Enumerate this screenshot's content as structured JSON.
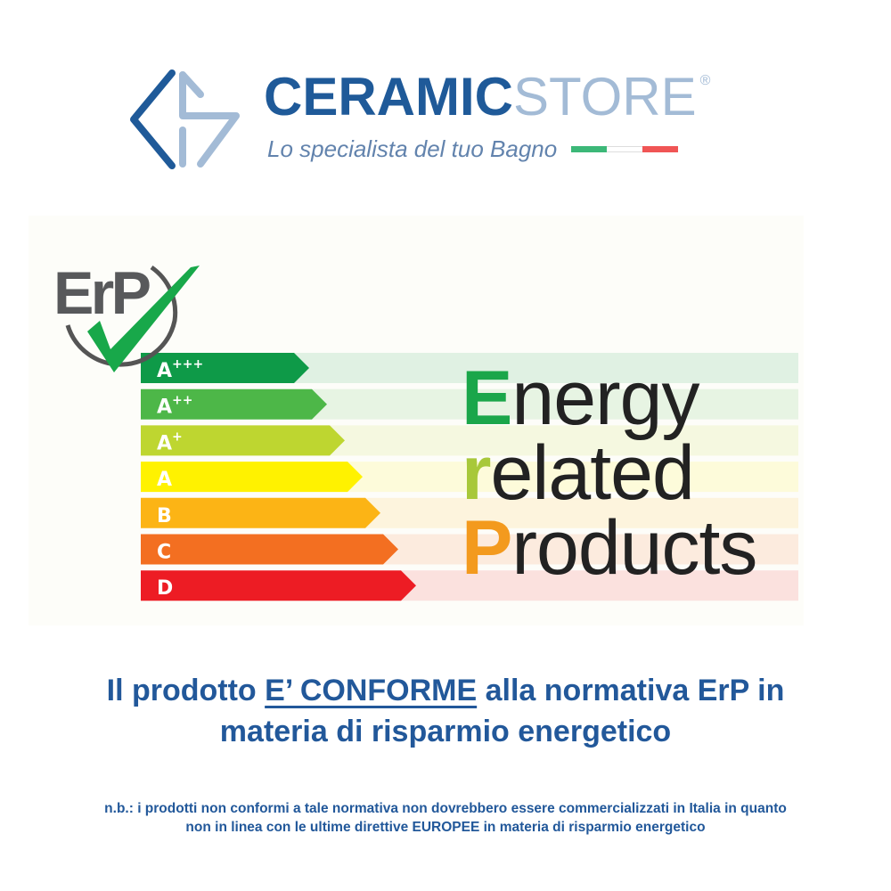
{
  "logo": {
    "brand_part1": "CERAMIC",
    "brand_part2": "STORE",
    "registered": "®",
    "tagline": "Lo specialista del tuo Bagno",
    "flag_colors": [
      "#3cb878",
      "#ffffff",
      "#f05555"
    ],
    "primary_color": "#1f5a99",
    "secondary_color": "#a3bbd6"
  },
  "erp_badge": {
    "text": "ErP",
    "icon": "checkmark-icon"
  },
  "energy_scale": [
    {
      "grade": "A",
      "sup": "+++",
      "color": "#0e9a48"
    },
    {
      "grade": "A",
      "sup": "++",
      "color": "#4db748"
    },
    {
      "grade": "A",
      "sup": "+",
      "color": "#bed630"
    },
    {
      "grade": "A",
      "sup": "",
      "color": "#fff200"
    },
    {
      "grade": "B",
      "sup": "",
      "color": "#fcb415"
    },
    {
      "grade": "C",
      "sup": "",
      "color": "#f36f21"
    },
    {
      "grade": "D",
      "sup": "",
      "color": "#ed1c24"
    }
  ],
  "erp_title": {
    "line1_initial": "E",
    "line1_rest": "nergy",
    "line2_initial": "r",
    "line2_rest": "elated",
    "line3_initial": "P",
    "line3_rest": "roducts",
    "colors": [
      "#1aa64a",
      "#a8c83a",
      "#f39a1e"
    ]
  },
  "headline": {
    "before": "Il prodotto ",
    "emphasis": "E’ CONFORME",
    "after": " alla normativa ErP in",
    "line2": "materia di risparmio energetico"
  },
  "note": {
    "line1": "n.b.: i prodotti non conformi a tale normativa non dovrebbero essere commercializzati in Italia in quanto",
    "line2_before": "non in linea con le ultime direttive ",
    "line2_bold": "EUROPEE",
    "line2_after": " in materia di risparmio energetico"
  }
}
